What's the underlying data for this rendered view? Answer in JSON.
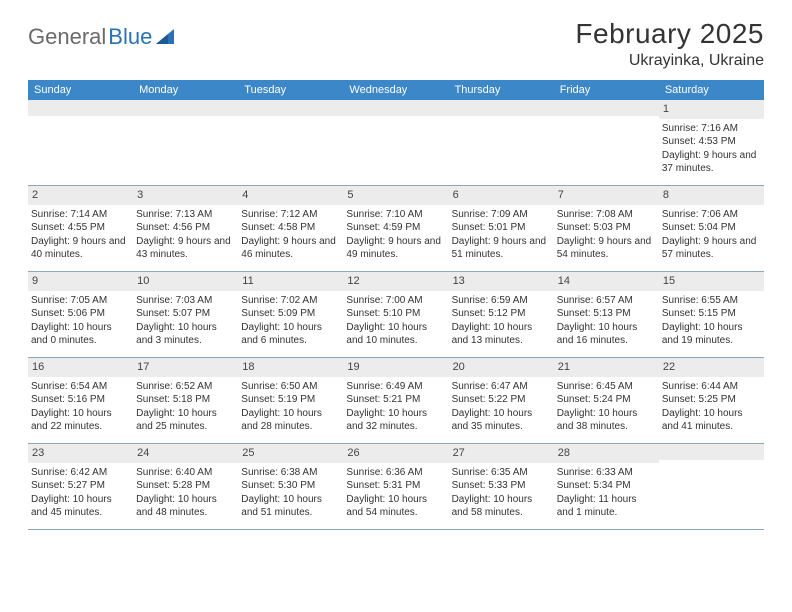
{
  "brand": {
    "word1": "General",
    "word2": "Blue"
  },
  "title": "February 2025",
  "location": "Ukrayinka, Ukraine",
  "colors": {
    "header_bar": "#3b87c8",
    "daynum_bg": "#ececec",
    "rule": "#8aa7bd",
    "text": "#333333",
    "brand_gray": "#6a6a6a",
    "brand_blue": "#2a72b5"
  },
  "weekdays": [
    "Sunday",
    "Monday",
    "Tuesday",
    "Wednesday",
    "Thursday",
    "Friday",
    "Saturday"
  ],
  "weeks": [
    [
      {
        "n": "",
        "lines": []
      },
      {
        "n": "",
        "lines": []
      },
      {
        "n": "",
        "lines": []
      },
      {
        "n": "",
        "lines": []
      },
      {
        "n": "",
        "lines": []
      },
      {
        "n": "",
        "lines": []
      },
      {
        "n": "1",
        "lines": [
          "Sunrise: 7:16 AM",
          "Sunset: 4:53 PM",
          "Daylight: 9 hours and 37 minutes."
        ]
      }
    ],
    [
      {
        "n": "2",
        "lines": [
          "Sunrise: 7:14 AM",
          "Sunset: 4:55 PM",
          "Daylight: 9 hours and 40 minutes."
        ]
      },
      {
        "n": "3",
        "lines": [
          "Sunrise: 7:13 AM",
          "Sunset: 4:56 PM",
          "Daylight: 9 hours and 43 minutes."
        ]
      },
      {
        "n": "4",
        "lines": [
          "Sunrise: 7:12 AM",
          "Sunset: 4:58 PM",
          "Daylight: 9 hours and 46 minutes."
        ]
      },
      {
        "n": "5",
        "lines": [
          "Sunrise: 7:10 AM",
          "Sunset: 4:59 PM",
          "Daylight: 9 hours and 49 minutes."
        ]
      },
      {
        "n": "6",
        "lines": [
          "Sunrise: 7:09 AM",
          "Sunset: 5:01 PM",
          "Daylight: 9 hours and 51 minutes."
        ]
      },
      {
        "n": "7",
        "lines": [
          "Sunrise: 7:08 AM",
          "Sunset: 5:03 PM",
          "Daylight: 9 hours and 54 minutes."
        ]
      },
      {
        "n": "8",
        "lines": [
          "Sunrise: 7:06 AM",
          "Sunset: 5:04 PM",
          "Daylight: 9 hours and 57 minutes."
        ]
      }
    ],
    [
      {
        "n": "9",
        "lines": [
          "Sunrise: 7:05 AM",
          "Sunset: 5:06 PM",
          "Daylight: 10 hours and 0 minutes."
        ]
      },
      {
        "n": "10",
        "lines": [
          "Sunrise: 7:03 AM",
          "Sunset: 5:07 PM",
          "Daylight: 10 hours and 3 minutes."
        ]
      },
      {
        "n": "11",
        "lines": [
          "Sunrise: 7:02 AM",
          "Sunset: 5:09 PM",
          "Daylight: 10 hours and 6 minutes."
        ]
      },
      {
        "n": "12",
        "lines": [
          "Sunrise: 7:00 AM",
          "Sunset: 5:10 PM",
          "Daylight: 10 hours and 10 minutes."
        ]
      },
      {
        "n": "13",
        "lines": [
          "Sunrise: 6:59 AM",
          "Sunset: 5:12 PM",
          "Daylight: 10 hours and 13 minutes."
        ]
      },
      {
        "n": "14",
        "lines": [
          "Sunrise: 6:57 AM",
          "Sunset: 5:13 PM",
          "Daylight: 10 hours and 16 minutes."
        ]
      },
      {
        "n": "15",
        "lines": [
          "Sunrise: 6:55 AM",
          "Sunset: 5:15 PM",
          "Daylight: 10 hours and 19 minutes."
        ]
      }
    ],
    [
      {
        "n": "16",
        "lines": [
          "Sunrise: 6:54 AM",
          "Sunset: 5:16 PM",
          "Daylight: 10 hours and 22 minutes."
        ]
      },
      {
        "n": "17",
        "lines": [
          "Sunrise: 6:52 AM",
          "Sunset: 5:18 PM",
          "Daylight: 10 hours and 25 minutes."
        ]
      },
      {
        "n": "18",
        "lines": [
          "Sunrise: 6:50 AM",
          "Sunset: 5:19 PM",
          "Daylight: 10 hours and 28 minutes."
        ]
      },
      {
        "n": "19",
        "lines": [
          "Sunrise: 6:49 AM",
          "Sunset: 5:21 PM",
          "Daylight: 10 hours and 32 minutes."
        ]
      },
      {
        "n": "20",
        "lines": [
          "Sunrise: 6:47 AM",
          "Sunset: 5:22 PM",
          "Daylight: 10 hours and 35 minutes."
        ]
      },
      {
        "n": "21",
        "lines": [
          "Sunrise: 6:45 AM",
          "Sunset: 5:24 PM",
          "Daylight: 10 hours and 38 minutes."
        ]
      },
      {
        "n": "22",
        "lines": [
          "Sunrise: 6:44 AM",
          "Sunset: 5:25 PM",
          "Daylight: 10 hours and 41 minutes."
        ]
      }
    ],
    [
      {
        "n": "23",
        "lines": [
          "Sunrise: 6:42 AM",
          "Sunset: 5:27 PM",
          "Daylight: 10 hours and 45 minutes."
        ]
      },
      {
        "n": "24",
        "lines": [
          "Sunrise: 6:40 AM",
          "Sunset: 5:28 PM",
          "Daylight: 10 hours and 48 minutes."
        ]
      },
      {
        "n": "25",
        "lines": [
          "Sunrise: 6:38 AM",
          "Sunset: 5:30 PM",
          "Daylight: 10 hours and 51 minutes."
        ]
      },
      {
        "n": "26",
        "lines": [
          "Sunrise: 6:36 AM",
          "Sunset: 5:31 PM",
          "Daylight: 10 hours and 54 minutes."
        ]
      },
      {
        "n": "27",
        "lines": [
          "Sunrise: 6:35 AM",
          "Sunset: 5:33 PM",
          "Daylight: 10 hours and 58 minutes."
        ]
      },
      {
        "n": "28",
        "lines": [
          "Sunrise: 6:33 AM",
          "Sunset: 5:34 PM",
          "Daylight: 11 hours and 1 minute."
        ]
      },
      {
        "n": "",
        "lines": []
      }
    ]
  ]
}
